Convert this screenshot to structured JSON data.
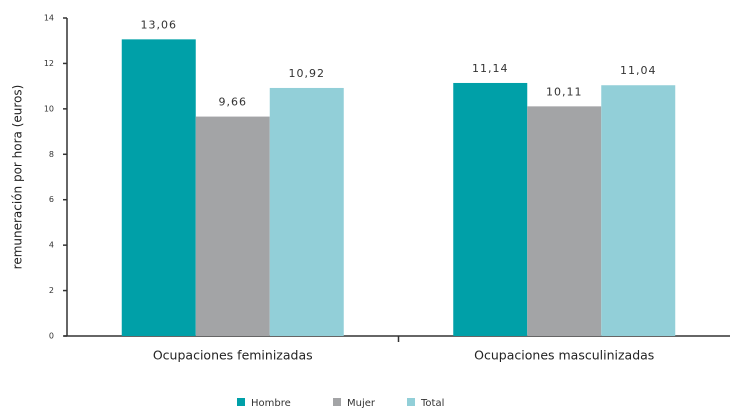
{
  "chart_data": {
    "type": "bar",
    "y_axis_label": "remuneración por hora (euros)",
    "categories": [
      "Ocupaciones feminizadas",
      "Ocupaciones masculinizadas"
    ],
    "series": [
      {
        "name": "Hombre",
        "color": "#00a0a8",
        "values": [
          13.06,
          11.14
        ],
        "value_labels": [
          "13,06",
          "11,14"
        ]
      },
      {
        "name": "Mujer",
        "color": "#a3a4a6",
        "values": [
          9.66,
          10.11
        ],
        "value_labels": [
          "9,66",
          "10,11"
        ]
      },
      {
        "name": "Total",
        "color": "#92cfd8",
        "values": [
          10.92,
          11.04
        ],
        "value_labels": [
          "10,92",
          "11,04"
        ]
      }
    ],
    "ylim": [
      0,
      14
    ],
    "yticks": [
      0,
      2,
      4,
      6,
      8,
      10,
      12,
      14
    ],
    "grid": false,
    "legend": "bottom"
  }
}
